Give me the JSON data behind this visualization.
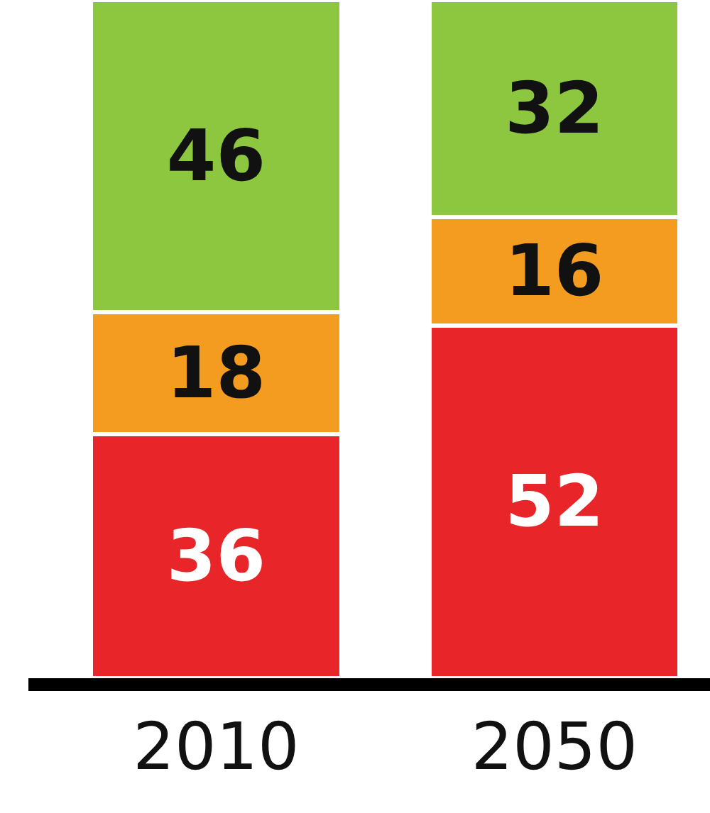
{
  "chart_data": {
    "type": "bar",
    "stacked": true,
    "data_labels": true,
    "categories": [
      "2010",
      "2050"
    ],
    "series": [
      {
        "color": "#e8262a",
        "values": [
          36,
          52
        ]
      },
      {
        "color": "#f39c1f",
        "values": [
          18,
          16
        ]
      },
      {
        "color": "#8dc63f",
        "values": [
          46,
          32
        ]
      }
    ]
  }
}
